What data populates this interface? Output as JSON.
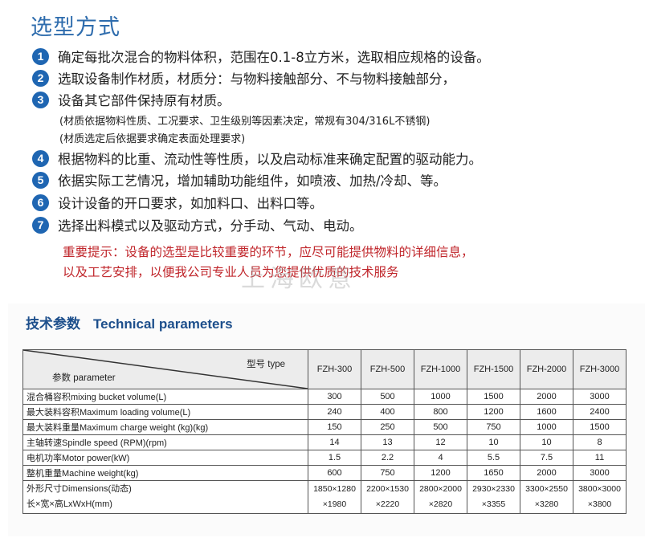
{
  "title": "选型方式",
  "items": [
    {
      "num": "1",
      "text": "确定每批次混合的物料体积，范围在0.1-8立方米，选取相应规格的设备。"
    },
    {
      "num": "2",
      "text": "选取设备制作材质，材质分：与物料接触部分、不与物料接触部分，"
    },
    {
      "num": "3",
      "text": "设备其它部件保持原有材质。"
    },
    {
      "num": "4",
      "text": "根据物料的比重、流动性等性质，以及启动标准来确定配置的驱动能力。"
    },
    {
      "num": "5",
      "text": "依据实际工艺情况，增加辅助功能组件，如喷液、加热/冷却、等。"
    },
    {
      "num": "6",
      "text": "设计设备的开口要求，如加料口、出料口等。"
    },
    {
      "num": "7",
      "text": "选择出料模式以及驱动方式，分手动、气动、电动。"
    }
  ],
  "notes": [
    "(材质依据物料性质、工况要求、卫生级别等因素决定，常规有304/316L不锈钢)",
    "(材质选定后依据要求确定表面处理要求)"
  ],
  "tip": [
    "重要提示：设备的选型是比较重要的环节，应尽可能提供物料的详细信息，",
    "以及工艺安排，以便我公司专业人员为您提供优质的技术服务"
  ],
  "watermark": "上海欧意",
  "colors": {
    "title": "#2e6cad",
    "badge": "#1f66b2",
    "tip": "#c0262b",
    "section_title": "#1d4f8c"
  },
  "tech": {
    "title_cn": "技术参数",
    "title_en": "Technical parameters",
    "header_type": "型号 type",
    "header_param": "参数 parameter",
    "models": [
      "FZH-300",
      "FZH-500",
      "FZH-1000",
      "FZH-1500",
      "FZH-2000",
      "FZH-3000"
    ],
    "rows": [
      {
        "label": "混合桶容积mixing bucket volume(L)",
        "values": [
          "300",
          "500",
          "1000",
          "1500",
          "2000",
          "3000"
        ]
      },
      {
        "label": "最大装料容积Maximum loading volume(L)",
        "values": [
          "240",
          "400",
          "800",
          "1200",
          "1600",
          "2400"
        ]
      },
      {
        "label": "最大装料重量Maximum charge weight (kg)(kg)",
        "values": [
          "150",
          "250",
          "500",
          "750",
          "1000",
          "1500"
        ]
      },
      {
        "label": "主轴转速Spindle speed (RPM)(rpm)",
        "values": [
          "14",
          "13",
          "12",
          "10",
          "10",
          "8"
        ]
      },
      {
        "label": "电机功率Motor power(kW)",
        "values": [
          "1.5",
          "2.2",
          "4",
          "5.5",
          "7.5",
          "11"
        ]
      },
      {
        "label": "整机重量Machine weight(kg)",
        "values": [
          "600",
          "750",
          "1200",
          "1650",
          "2000",
          "3000"
        ]
      }
    ],
    "dims": {
      "label1": "外形尺寸Dimensions(动态)",
      "label2": "长×宽×高LxWxH(mm)",
      "line1": [
        "1850×1280",
        "2200×1530",
        "2800×2000",
        "2930×2330",
        "3300×2550",
        "3800×3000"
      ],
      "line2": [
        "×1980",
        "×2220",
        "×2820",
        "×3355",
        "×3280",
        "×3800"
      ]
    }
  }
}
